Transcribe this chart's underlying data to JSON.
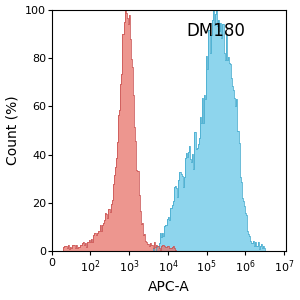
{
  "title": "DM180",
  "xlabel": "APC-A",
  "ylabel": "Count (%)",
  "ylim": [
    0,
    100
  ],
  "yticks": [
    0,
    20,
    40,
    60,
    80,
    100
  ],
  "red_color": "#E8736A",
  "red_edge": "#C85050",
  "blue_color": "#68C8E8",
  "blue_edge": "#40A8CC",
  "red_alpha": 0.75,
  "blue_alpha": 0.75,
  "background_color": "#ffffff",
  "title_fontsize": 12,
  "label_fontsize": 10,
  "tick_fontsize": 8
}
